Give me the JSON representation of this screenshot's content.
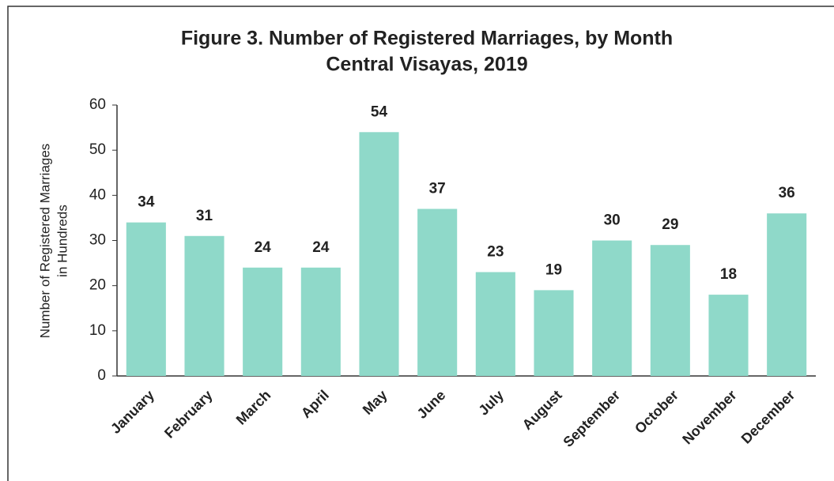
{
  "chart_data": {
    "type": "bar",
    "title": [
      "Figure 3. Number of Registered Marriages, by Month",
      "Central Visayas, 2019"
    ],
    "y_label": [
      "Number of Registered Marriages",
      "in Hundreds"
    ],
    "categories": [
      "January",
      "February",
      "March",
      "April",
      "May",
      "June",
      "July",
      "August",
      "September",
      "October",
      "November",
      "December"
    ],
    "values": [
      34,
      31,
      24,
      24,
      54,
      37,
      23,
      19,
      30,
      29,
      18,
      36
    ],
    "color": "#8fd9c9",
    "ylim": [
      0,
      60
    ],
    "yticks": [
      0,
      10,
      20,
      30,
      40,
      50,
      60
    ],
    "grid": false
  }
}
